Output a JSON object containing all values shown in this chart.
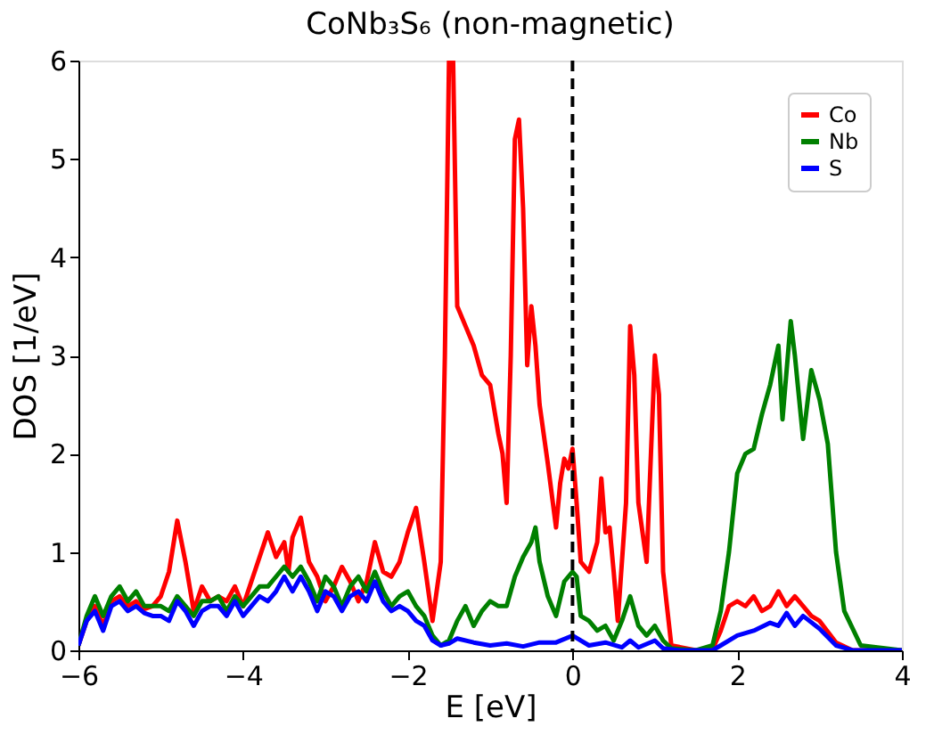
{
  "chart_data": {
    "type": "line",
    "title": "CoNb₃S₆ (non-magnetic)",
    "xlabel": "E [eV]",
    "ylabel": "DOS [1/eV]",
    "xlim": [
      -6,
      4
    ],
    "ylim": [
      0,
      6
    ],
    "xticks": [
      -6,
      -4,
      -2,
      0,
      2,
      4
    ],
    "yticks": [
      0,
      1,
      2,
      3,
      4,
      5,
      6
    ],
    "grid": false,
    "legend": "top right",
    "marker": "none",
    "line_style": "solid",
    "ref_lines": [
      {
        "axis": "x",
        "value": 0,
        "color": "#000000",
        "line_style": "dashed"
      }
    ],
    "series": [
      {
        "name": "Co",
        "color": "#ff0000",
        "x": [
          -6,
          -5.9,
          -5.8,
          -5.7,
          -5.6,
          -5.5,
          -5.4,
          -5.3,
          -5.2,
          -5.1,
          -5.0,
          -4.9,
          -4.8,
          -4.7,
          -4.6,
          -4.5,
          -4.4,
          -4.3,
          -4.2,
          -4.1,
          -4.0,
          -3.9,
          -3.8,
          -3.7,
          -3.6,
          -3.5,
          -3.45,
          -3.4,
          -3.3,
          -3.2,
          -3.1,
          -3.0,
          -2.9,
          -2.8,
          -2.7,
          -2.6,
          -2.5,
          -2.4,
          -2.3,
          -2.2,
          -2.1,
          -2.0,
          -1.9,
          -1.8,
          -1.7,
          -1.6,
          -1.55,
          -1.5,
          -1.45,
          -1.4,
          -1.3,
          -1.2,
          -1.1,
          -1.0,
          -0.9,
          -0.85,
          -0.8,
          -0.75,
          -0.7,
          -0.65,
          -0.6,
          -0.55,
          -0.5,
          -0.45,
          -0.4,
          -0.3,
          -0.2,
          -0.15,
          -0.1,
          -0.05,
          0.0,
          0.05,
          0.1,
          0.2,
          0.3,
          0.35,
          0.4,
          0.45,
          0.5,
          0.55,
          0.65,
          0.7,
          0.75,
          0.8,
          0.9,
          1.0,
          1.05,
          1.1,
          1.2,
          1.5,
          1.7,
          1.8,
          1.9,
          2.0,
          2.1,
          2.2,
          2.3,
          2.4,
          2.5,
          2.6,
          2.7,
          2.8,
          2.9,
          3.0,
          3.2,
          3.4,
          4.0
        ],
        "values": [
          0.05,
          0.3,
          0.45,
          0.25,
          0.5,
          0.55,
          0.45,
          0.5,
          0.42,
          0.45,
          0.55,
          0.8,
          1.32,
          0.9,
          0.4,
          0.65,
          0.5,
          0.55,
          0.5,
          0.65,
          0.45,
          0.7,
          0.95,
          1.2,
          0.95,
          1.1,
          0.8,
          1.15,
          1.35,
          0.9,
          0.75,
          0.5,
          0.65,
          0.85,
          0.7,
          0.5,
          0.7,
          1.1,
          0.8,
          0.75,
          0.9,
          1.2,
          1.45,
          0.9,
          0.3,
          0.9,
          3.0,
          6.0,
          6.0,
          3.5,
          3.3,
          3.1,
          2.8,
          2.7,
          2.2,
          2.0,
          1.5,
          3.0,
          5.2,
          5.4,
          4.5,
          2.9,
          3.5,
          3.1,
          2.5,
          1.9,
          1.25,
          1.7,
          1.95,
          1.85,
          2.05,
          1.5,
          0.9,
          0.8,
          1.1,
          1.75,
          1.2,
          1.25,
          0.8,
          0.3,
          1.5,
          3.3,
          2.8,
          1.5,
          0.9,
          3.0,
          2.6,
          0.8,
          0.05,
          0.0,
          0.01,
          0.2,
          0.45,
          0.5,
          0.45,
          0.55,
          0.4,
          0.45,
          0.6,
          0.45,
          0.55,
          0.45,
          0.35,
          0.3,
          0.08,
          0.0,
          0.0
        ]
      },
      {
        "name": "Nb",
        "color": "#008000",
        "x": [
          -6,
          -5.9,
          -5.8,
          -5.7,
          -5.6,
          -5.5,
          -5.4,
          -5.3,
          -5.2,
          -5.1,
          -5.0,
          -4.9,
          -4.8,
          -4.7,
          -4.6,
          -4.5,
          -4.4,
          -4.3,
          -4.2,
          -4.1,
          -4.0,
          -3.9,
          -3.8,
          -3.7,
          -3.6,
          -3.5,
          -3.4,
          -3.3,
          -3.2,
          -3.1,
          -3.0,
          -2.9,
          -2.8,
          -2.7,
          -2.6,
          -2.5,
          -2.4,
          -2.3,
          -2.2,
          -2.1,
          -2.0,
          -1.9,
          -1.8,
          -1.7,
          -1.6,
          -1.5,
          -1.4,
          -1.3,
          -1.2,
          -1.1,
          -1.0,
          -0.9,
          -0.8,
          -0.7,
          -0.6,
          -0.5,
          -0.45,
          -0.4,
          -0.3,
          -0.2,
          -0.1,
          0.0,
          0.05,
          0.1,
          0.2,
          0.3,
          0.4,
          0.5,
          0.6,
          0.7,
          0.8,
          0.9,
          1.0,
          1.1,
          1.2,
          1.5,
          1.7,
          1.8,
          1.9,
          2.0,
          2.1,
          2.2,
          2.3,
          2.4,
          2.5,
          2.55,
          2.65,
          2.7,
          2.8,
          2.9,
          3.0,
          3.1,
          3.2,
          3.3,
          3.5,
          4.0
        ],
        "values": [
          0.05,
          0.35,
          0.55,
          0.35,
          0.55,
          0.65,
          0.5,
          0.6,
          0.45,
          0.45,
          0.45,
          0.4,
          0.55,
          0.45,
          0.35,
          0.5,
          0.5,
          0.55,
          0.4,
          0.55,
          0.45,
          0.55,
          0.65,
          0.65,
          0.75,
          0.85,
          0.75,
          0.85,
          0.7,
          0.5,
          0.75,
          0.65,
          0.45,
          0.65,
          0.75,
          0.6,
          0.8,
          0.6,
          0.45,
          0.55,
          0.6,
          0.45,
          0.35,
          0.15,
          0.05,
          0.1,
          0.3,
          0.45,
          0.25,
          0.4,
          0.5,
          0.45,
          0.45,
          0.75,
          0.95,
          1.1,
          1.25,
          0.9,
          0.55,
          0.35,
          0.7,
          0.8,
          0.75,
          0.35,
          0.3,
          0.2,
          0.25,
          0.1,
          0.3,
          0.55,
          0.25,
          0.15,
          0.25,
          0.1,
          0.02,
          0.0,
          0.05,
          0.4,
          1.0,
          1.8,
          2.0,
          2.05,
          2.4,
          2.7,
          3.1,
          2.35,
          3.35,
          3.0,
          2.15,
          2.85,
          2.55,
          2.1,
          1.0,
          0.4,
          0.05,
          0.0
        ]
      },
      {
        "name": "S",
        "color": "#0000ff",
        "x": [
          -6,
          -5.9,
          -5.8,
          -5.7,
          -5.6,
          -5.5,
          -5.4,
          -5.3,
          -5.2,
          -5.1,
          -5.0,
          -4.9,
          -4.8,
          -4.7,
          -4.6,
          -4.5,
          -4.4,
          -4.3,
          -4.2,
          -4.1,
          -4.0,
          -3.9,
          -3.8,
          -3.7,
          -3.6,
          -3.5,
          -3.4,
          -3.3,
          -3.2,
          -3.1,
          -3.0,
          -2.9,
          -2.8,
          -2.7,
          -2.6,
          -2.5,
          -2.4,
          -2.3,
          -2.2,
          -2.1,
          -2.0,
          -1.9,
          -1.8,
          -1.7,
          -1.6,
          -1.5,
          -1.4,
          -1.2,
          -1.0,
          -0.8,
          -0.6,
          -0.4,
          -0.2,
          0.0,
          0.2,
          0.4,
          0.6,
          0.7,
          0.8,
          1.0,
          1.1,
          1.3,
          1.7,
          1.8,
          2.0,
          2.2,
          2.4,
          2.5,
          2.6,
          2.7,
          2.8,
          3.0,
          3.2,
          3.4,
          4.0
        ],
        "values": [
          0.05,
          0.3,
          0.4,
          0.2,
          0.45,
          0.5,
          0.4,
          0.45,
          0.38,
          0.35,
          0.35,
          0.3,
          0.5,
          0.4,
          0.25,
          0.4,
          0.45,
          0.45,
          0.35,
          0.5,
          0.35,
          0.45,
          0.55,
          0.5,
          0.6,
          0.75,
          0.6,
          0.75,
          0.6,
          0.4,
          0.6,
          0.55,
          0.4,
          0.55,
          0.6,
          0.5,
          0.7,
          0.5,
          0.4,
          0.45,
          0.4,
          0.3,
          0.25,
          0.1,
          0.05,
          0.07,
          0.12,
          0.08,
          0.05,
          0.07,
          0.04,
          0.08,
          0.08,
          0.15,
          0.05,
          0.08,
          0.03,
          0.1,
          0.03,
          0.1,
          0.02,
          0.0,
          0.0,
          0.05,
          0.15,
          0.2,
          0.28,
          0.25,
          0.38,
          0.25,
          0.35,
          0.22,
          0.05,
          0.0,
          0.0
        ]
      }
    ]
  }
}
